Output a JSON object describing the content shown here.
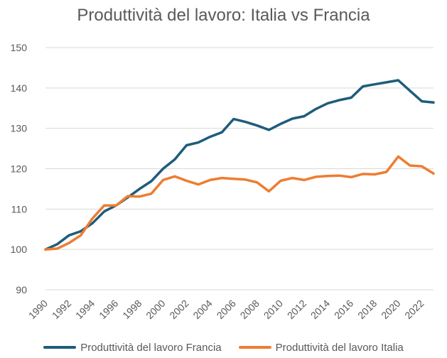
{
  "chart_data": {
    "type": "line",
    "title": "Produttività del lavoro: Italia vs Francia",
    "xlabel": "",
    "ylabel": "",
    "ylim": [
      90,
      150
    ],
    "yticks": [
      90,
      100,
      110,
      120,
      130,
      140,
      150
    ],
    "xlim": [
      1990,
      2023
    ],
    "xtick_labels": [
      "1990",
      "1992",
      "1994",
      "1996",
      "1998",
      "2000",
      "2002",
      "2004",
      "2006",
      "2008",
      "2010",
      "2012",
      "2014",
      "2016",
      "2018",
      "2020",
      "2022"
    ],
    "x": [
      1990,
      1991,
      1992,
      1993,
      1994,
      1995,
      1996,
      1997,
      1998,
      1999,
      2000,
      2001,
      2002,
      2003,
      2004,
      2005,
      2006,
      2007,
      2008,
      2009,
      2010,
      2011,
      2012,
      2013,
      2014,
      2015,
      2016,
      2017,
      2018,
      2019,
      2020,
      2021,
      2022,
      2023
    ],
    "grid": true,
    "legend_position": "bottom",
    "series": [
      {
        "name": "Produttività del lavoro Francia",
        "color": "#1f5c7a",
        "values": [
          100,
          101.3,
          103.5,
          104.5,
          106.5,
          109.4,
          110.9,
          112.9,
          115,
          116.9,
          120,
          122.3,
          125.8,
          126.5,
          127.9,
          129,
          132.3,
          131.6,
          130.7,
          129.6,
          131.1,
          132.4,
          133,
          134.8,
          136.2,
          137,
          137.6,
          140.4,
          140.9,
          141.4,
          141.9,
          139.3,
          136.7,
          136.4
        ]
      },
      {
        "name": "Produttività del lavoro Italia",
        "color": "#ed7d31",
        "values": [
          100,
          100.2,
          101.6,
          103.5,
          107.7,
          110.9,
          110.9,
          113.2,
          113.1,
          113.8,
          117.2,
          118.1,
          117,
          116.1,
          117.2,
          117.7,
          117.5,
          117.3,
          116.6,
          114.4,
          117,
          117.7,
          117.2,
          118,
          118.2,
          118.3,
          117.9,
          118.7,
          118.6,
          119.2,
          123,
          120.8,
          120.6,
          118.8
        ]
      }
    ]
  }
}
